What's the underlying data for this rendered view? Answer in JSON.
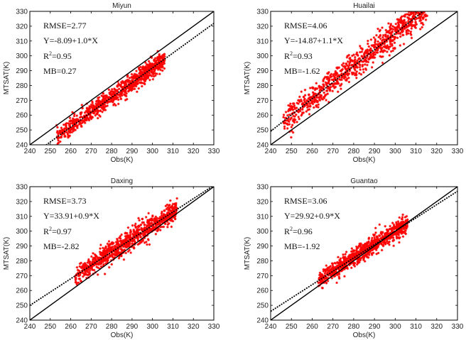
{
  "chart_data": [
    {
      "type": "scatter",
      "title": "Miyun",
      "xlabel": "Obs(K)",
      "ylabel": "MTSAT(K)",
      "xlim": [
        240,
        330
      ],
      "ylim": [
        240,
        330
      ],
      "xticks": [
        240,
        250,
        260,
        270,
        280,
        290,
        300,
        310,
        320,
        330
      ],
      "yticks": [
        240,
        250,
        260,
        270,
        280,
        290,
        300,
        310,
        320,
        330
      ],
      "stats": {
        "rmse": "RMSE=2.77",
        "eq": "Y=-8.09+1.0*X",
        "r2_label": "R",
        "r2_exp": "2",
        "r2_value": "=0.95",
        "mb": "MB=0.27"
      },
      "one_to_one": {
        "intercept": 0,
        "slope": 1
      },
      "fit": {
        "intercept": -8.09,
        "slope": 1.0
      },
      "cluster": {
        "x_min": 253,
        "x_max": 306,
        "noise": 3.0
      },
      "marker_color": "#ff0000"
    },
    {
      "type": "scatter",
      "title": "Huailai",
      "xlabel": "Obs(K)",
      "ylabel": "MTSAT(K)",
      "xlim": [
        240,
        330
      ],
      "ylim": [
        240,
        330
      ],
      "xticks": [
        240,
        250,
        260,
        270,
        280,
        290,
        300,
        310,
        320,
        330
      ],
      "yticks": [
        240,
        250,
        260,
        270,
        280,
        290,
        300,
        310,
        320,
        330
      ],
      "stats": {
        "rmse": "RMSE=4.06",
        "eq": "Y=-14.87+1.1*X",
        "r2_label": "R",
        "r2_exp": "2",
        "r2_value": "=0.93",
        "mb": "MB=-1.62"
      },
      "one_to_one": {
        "intercept": 0,
        "slope": 1
      },
      "fit": {
        "intercept": -14.87,
        "slope": 1.1
      },
      "cluster": {
        "x_min": 246,
        "x_max": 316,
        "noise": 4.5
      },
      "marker_color": "#ff0000"
    },
    {
      "type": "scatter",
      "title": "Daxing",
      "xlabel": "Obs(K)",
      "ylabel": "MTSAT(K)",
      "xlim": [
        240,
        330
      ],
      "ylim": [
        240,
        330
      ],
      "xticks": [
        240,
        250,
        260,
        270,
        280,
        290,
        300,
        310,
        320,
        330
      ],
      "yticks": [
        240,
        250,
        260,
        270,
        280,
        290,
        300,
        310,
        320,
        330
      ],
      "stats": {
        "rmse": "RMSE=3.73",
        "eq": "Y=33.91+0.9*X",
        "r2_label": "R",
        "r2_exp": "2",
        "r2_value": "=0.97",
        "mb": "MB=-2.82"
      },
      "one_to_one": {
        "intercept": 0,
        "slope": 1
      },
      "fit": {
        "intercept": 33.91,
        "slope": 0.9
      },
      "cluster": {
        "x_min": 262,
        "x_max": 312,
        "noise": 3.5
      },
      "marker_color": "#ff0000"
    },
    {
      "type": "scatter",
      "title": "Guantao",
      "xlabel": "Obs(K)",
      "ylabel": "MTSAT(K)",
      "xlim": [
        240,
        330
      ],
      "ylim": [
        240,
        330
      ],
      "xticks": [
        240,
        250,
        260,
        270,
        280,
        290,
        300,
        310,
        320,
        330
      ],
      "yticks": [
        240,
        250,
        260,
        270,
        280,
        290,
        300,
        310,
        320,
        330
      ],
      "stats": {
        "rmse": "RMSE=3.06",
        "eq": "Y=29.92+0.9*X",
        "r2_label": "R",
        "r2_exp": "2",
        "r2_value": "=0.96",
        "mb": "MB=-1.92"
      },
      "one_to_one": {
        "intercept": 0,
        "slope": 1
      },
      "fit": {
        "intercept": 29.92,
        "slope": 0.9
      },
      "cluster": {
        "x_min": 263,
        "x_max": 306,
        "noise": 3.0
      },
      "marker_color": "#ff0000"
    }
  ]
}
